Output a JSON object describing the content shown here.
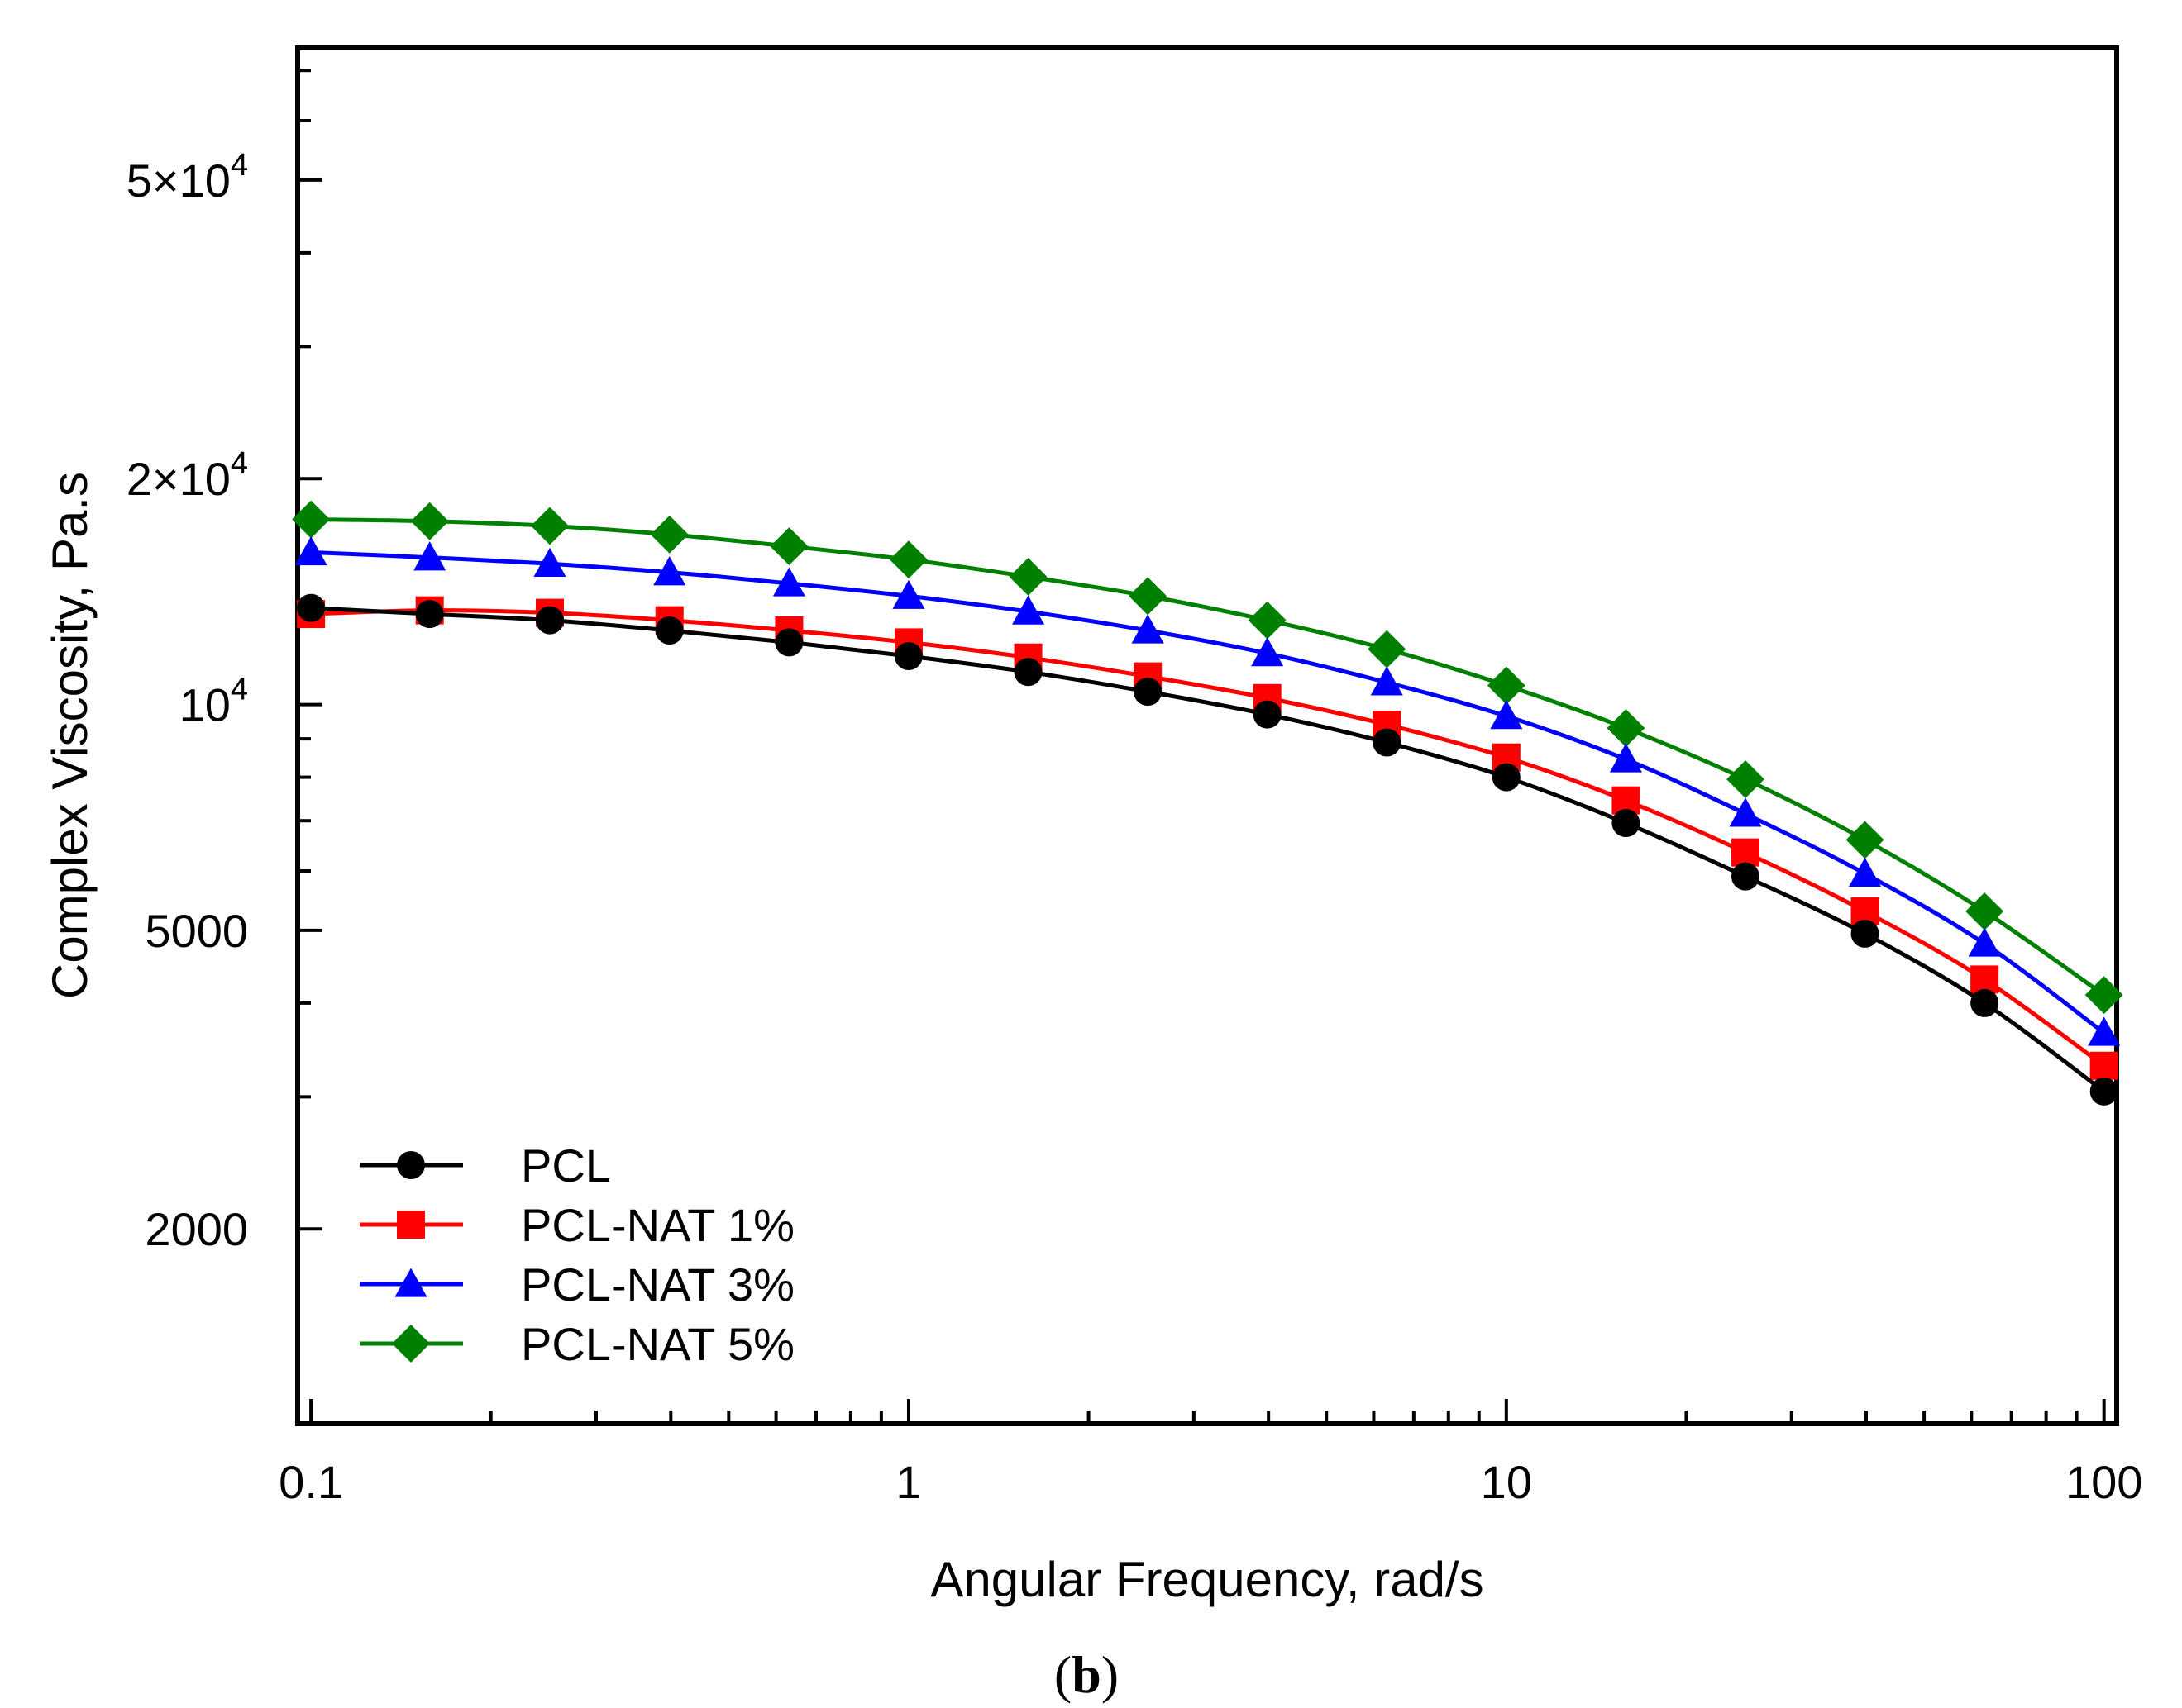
{
  "chart_data": {
    "type": "line",
    "xscale": "log",
    "yscale": "log",
    "xlabel": "Angular Frequency, rad/s",
    "ylabel": "Complex Viscosity, Pa.s",
    "xlim": [
      0.095,
      105
    ],
    "ylim": [
      1100,
      75000
    ],
    "x_tick_labels": [
      {
        "value": 0.1,
        "label": "0.1"
      },
      {
        "value": 1,
        "label": "1"
      },
      {
        "value": 10,
        "label": "10"
      },
      {
        "value": 100,
        "label": "100"
      }
    ],
    "y_tick_labels": [
      {
        "value": 2000,
        "label": "2000"
      },
      {
        "value": 5000,
        "label": "5000"
      },
      {
        "value": 10000,
        "base": "10",
        "exp": "4"
      },
      {
        "value": 20000,
        "base": "2×10",
        "exp": "4"
      },
      {
        "value": 50000,
        "base": "5×10",
        "exp": "4"
      }
    ],
    "legend_position": "bottom-left",
    "x": [
      0.1,
      0.158,
      0.251,
      0.398,
      0.631,
      1.0,
      1.585,
      2.512,
      3.981,
      6.31,
      10.0,
      15.85,
      25.12,
      39.81,
      63.1,
      100.0
    ],
    "series": [
      {
        "name": "PCL",
        "color": "#000000",
        "marker": "circle",
        "values": [
          13450,
          13200,
          12950,
          12550,
          12100,
          11600,
          11050,
          10400,
          9700,
          8900,
          8000,
          6950,
          5900,
          4950,
          4000,
          3050
        ]
      },
      {
        "name": "PCL-NAT 1%",
        "color": "#ff0000",
        "marker": "square",
        "values": [
          13200,
          13350,
          13250,
          12950,
          12550,
          12100,
          11550,
          10900,
          10200,
          9400,
          8500,
          7450,
          6350,
          5300,
          4300,
          3300
        ]
      },
      {
        "name": "PCL-NAT 3%",
        "color": "#0000ff",
        "marker": "triangle",
        "values": [
          15950,
          15700,
          15400,
          15000,
          14500,
          13950,
          13300,
          12550,
          11700,
          10700,
          9650,
          8450,
          7150,
          5950,
          4800,
          3650
        ]
      },
      {
        "name": "PCL-NAT 5%",
        "color": "#008000",
        "marker": "diamond",
        "values": [
          17650,
          17550,
          17300,
          16850,
          16250,
          15600,
          14800,
          13950,
          12950,
          11850,
          10600,
          9300,
          7950,
          6600,
          5300,
          4100
        ]
      }
    ]
  },
  "caption": {
    "open": "(",
    "letter": "b",
    "close": ")"
  }
}
